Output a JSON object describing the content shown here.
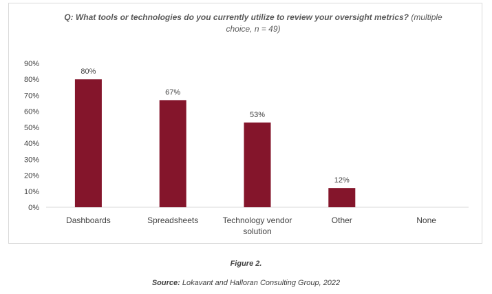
{
  "figure_caption": "Figure 2.",
  "source": {
    "label": "Source:",
    "text": "Lokavant and Halloran Consulting Group, 2022"
  },
  "chart_data": {
    "type": "bar",
    "title_question": "Q: What tools or technologies do you currently utilize to review your oversight metrics?",
    "title_note": "(multiple choice, n = 49)",
    "categories": [
      "Dashboards",
      "Spreadsheets",
      "Technology vendor solution",
      "Other",
      "None"
    ],
    "category_lines": [
      [
        "Dashboards"
      ],
      [
        "Spreadsheets"
      ],
      [
        "Technology vendor",
        "solution"
      ],
      [
        "Other"
      ],
      [
        "None"
      ]
    ],
    "values": [
      80,
      67,
      53,
      12,
      0
    ],
    "data_labels": [
      "80%",
      "67%",
      "53%",
      "12%",
      ""
    ],
    "ylim": [
      0,
      90
    ],
    "yticks": [
      0,
      10,
      20,
      30,
      40,
      50,
      60,
      70,
      80,
      90
    ],
    "ytick_labels": [
      "0%",
      "10%",
      "20%",
      "30%",
      "40%",
      "50%",
      "60%",
      "70%",
      "80%",
      "90%"
    ],
    "bar_color": "#84152b",
    "grid": false,
    "xlabel": "",
    "ylabel": ""
  }
}
